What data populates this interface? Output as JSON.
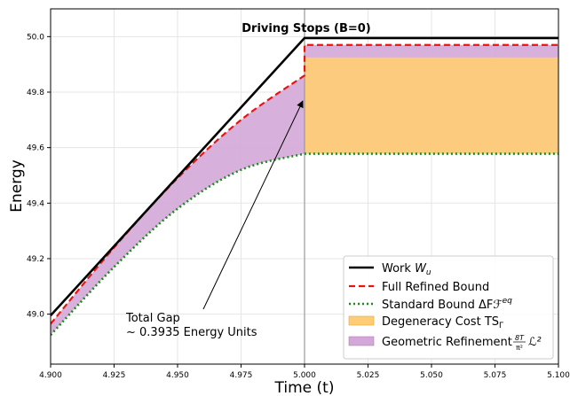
{
  "chart_data": {
    "type": "line",
    "xlabel": "Time (t)",
    "ylabel": "Energy",
    "xlim": [
      4.9,
      5.1
    ],
    "ylim": [
      48.82,
      50.1
    ],
    "xticks": [
      "4.900",
      "4.925",
      "4.950",
      "4.975",
      "5.000",
      "5.025",
      "5.050",
      "5.075",
      "5.100"
    ],
    "yticks": [
      "49.0",
      "49.2",
      "49.4",
      "49.6",
      "49.8",
      "50.0"
    ],
    "grid": true,
    "legend_position": "lower-right",
    "vline_x": 5.0,
    "series": [
      {
        "name": "Work",
        "math": "W",
        "sub": "u",
        "color": "#000000",
        "style": "solid",
        "x": [
          4.9,
          5.0,
          5.0,
          5.1
        ],
        "y": [
          48.995,
          49.995,
          49.995,
          49.995
        ]
      },
      {
        "name": "Full Refined Bound",
        "color": "#e8150f",
        "style": "dashed",
        "x": [
          4.9,
          4.925,
          4.95,
          4.975,
          5.0,
          5.0,
          5.1
        ],
        "y": [
          48.965,
          49.24,
          49.49,
          49.7,
          49.86,
          49.97,
          49.97
        ]
      },
      {
        "name": "Standard Bound ΔF",
        "sup": "eq",
        "color": "#1a8c1a",
        "style": "dotted",
        "x": [
          4.9,
          4.925,
          4.95,
          4.975,
          5.0,
          5.1
        ],
        "y": [
          48.925,
          49.17,
          49.38,
          49.52,
          49.578,
          49.578
        ]
      }
    ],
    "areas": [
      {
        "name": "Degeneracy Cost TS",
        "sub": "Γ",
        "color": "#ffcc77",
        "x": [
          5.0,
          5.1
        ],
        "y_low": 49.578,
        "y_high": 49.925
      },
      {
        "name": "Geometric Refinement",
        "formula_numer": "8T",
        "formula_denom": "π²",
        "symbol": "ℒ²",
        "color": "#d3a8d8",
        "between": [
          "Standard Bound ΔF",
          "Full Refined Bound"
        ]
      }
    ],
    "annotations": [
      {
        "text": "Driving Stops (B=0)"
      },
      {
        "text_lines": [
          "Total Gap",
          "~ 0.3935 Energy Units"
        ]
      }
    ]
  }
}
